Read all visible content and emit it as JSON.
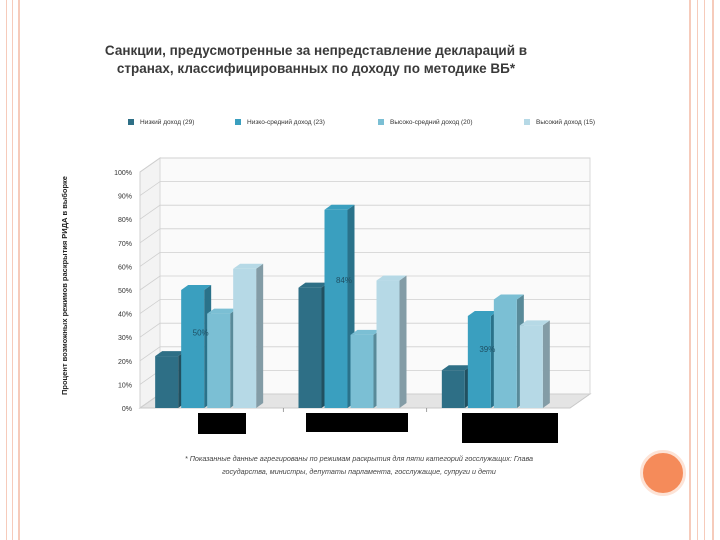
{
  "title_line1": "Санкции, предусмотренные за непредставление деклараций в",
  "title_line2": "странах, классифицированных по доходу по методике ВБ*",
  "footnote_line1": "* Показанные данные агрегированы по режимам раскрытия для пяти категорий госслужащих: Глава",
  "footnote_line2": "государства, министры, депутаты парламента, госслужащие, супруги и дети",
  "colors": [
    "#2e6f86",
    "#3a9fbf",
    "#7bbfd4",
    "#b6d9e6"
  ],
  "chart_data": {
    "type": "bar",
    "title": "Санкции, предусмотренные за непредставление деклараций в странах, классифицированных по доходу по методике ВБ*",
    "ylabel": "Процент возможных режимов раскрытия РИДА в выборке",
    "xlabel": "",
    "ylim": [
      0,
      100
    ],
    "yticks": [
      "0%",
      "10%",
      "20%",
      "30%",
      "40%",
      "50%",
      "60%",
      "70%",
      "80%",
      "90%",
      "100%"
    ],
    "categories": [
      "",
      "",
      ""
    ],
    "series": [
      {
        "name": "Низкий доход (29)",
        "values": [
          22,
          51,
          16
        ]
      },
      {
        "name": "Низко-средний доход (23)",
        "values": [
          50,
          84,
          39
        ]
      },
      {
        "name": "Высоко-средний доход (20)",
        "values": [
          40,
          31,
          46
        ]
      },
      {
        "name": "Высокий доход (15)",
        "values": [
          59,
          54,
          35
        ]
      }
    ],
    "data_labels": [
      {
        "group": 0,
        "series": 1,
        "text": "50%"
      },
      {
        "group": 1,
        "series": 1,
        "text": "84%"
      },
      {
        "group": 2,
        "series": 1,
        "text": "39%"
      }
    ],
    "grid": true,
    "legend": "top"
  }
}
